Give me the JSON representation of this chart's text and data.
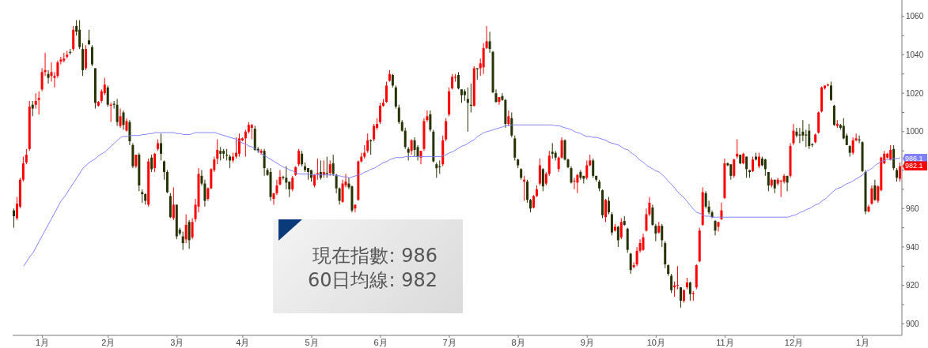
{
  "chart_data": {
    "type": "candlestick",
    "categories": [
      null,
      null,
      null,
      null,
      null,
      null,
      null,
      null,
      null,
      "1月",
      null,
      null,
      null,
      null,
      null,
      null,
      null,
      null,
      null,
      null,
      null,
      null,
      null,
      null,
      null,
      null,
      null,
      null,
      null,
      null,
      "2月",
      null,
      null,
      null,
      null,
      null,
      null,
      null,
      null,
      null,
      null,
      null,
      null,
      null,
      null,
      null,
      null,
      null,
      null,
      null,
      null,
      null,
      "3月",
      null,
      null,
      null,
      null,
      null,
      null,
      null,
      null,
      null,
      null,
      null,
      null,
      null,
      null,
      null,
      null,
      null,
      null,
      null,
      null,
      "4月",
      null,
      null,
      null,
      null,
      null,
      null,
      null,
      null,
      null,
      null,
      null,
      null,
      null,
      null,
      null,
      null,
      null,
      null,
      null,
      null,
      null,
      "5月",
      null,
      null,
      null,
      null,
      null,
      null,
      null,
      null,
      null,
      null,
      null,
      null,
      null,
      null,
      null,
      null,
      null,
      null,
      null,
      null,
      null,
      "6月",
      null,
      null,
      null,
      null,
      null,
      null,
      null,
      null,
      null,
      null,
      null,
      null,
      null,
      null,
      null,
      null,
      null,
      null,
      null,
      null,
      null,
      "7月",
      null,
      null,
      null,
      null,
      null,
      null,
      null,
      null,
      null,
      null,
      null,
      null,
      null,
      null,
      null,
      null,
      null,
      null,
      null,
      null,
      null,
      "8月",
      null,
      null,
      null,
      null,
      null,
      null,
      null,
      null,
      null,
      null,
      null,
      null,
      null,
      null,
      null,
      null,
      null,
      null,
      null,
      null,
      null,
      "9月",
      null,
      null,
      null,
      null,
      null,
      null,
      null,
      null,
      null,
      null,
      null,
      null,
      null,
      null,
      null,
      null,
      null,
      null,
      null,
      null,
      null,
      "10月",
      null,
      null,
      null,
      null,
      null,
      null,
      null,
      null,
      null,
      null,
      null,
      null,
      null,
      null,
      null,
      null,
      null,
      null,
      null,
      null,
      null,
      "11月",
      null,
      null,
      null,
      null,
      null,
      null,
      null,
      null,
      null,
      null,
      null,
      null,
      null,
      null,
      null,
      null,
      null,
      null,
      null,
      null,
      null,
      "12月",
      null,
      null,
      null,
      null,
      null,
      null,
      null,
      null,
      null,
      null,
      null,
      null,
      null,
      null,
      null,
      null,
      null,
      null,
      null,
      null,
      null,
      "1月",
      null,
      null,
      null,
      null,
      null,
      null,
      null,
      null,
      null,
      null,
      null,
      null
    ],
    "ohlc": [
      [
        959,
        960,
        950,
        956
      ],
      [
        955,
        966,
        954,
        962.5
      ],
      [
        961,
        976,
        960,
        975
      ],
      [
        975,
        987,
        974,
        983.5
      ],
      [
        984,
        991,
        983,
        988
      ],
      [
        991,
        1016,
        990,
        1013
      ],
      [
        1014,
        1016,
        1008,
        1012
      ],
      [
        1014,
        1020,
        1012,
        1016
      ],
      [
        1016.5,
        1021,
        1009,
        1017.5
      ],
      [
        1022,
        1033,
        1021,
        1031
      ],
      [
        1031,
        1041,
        1029,
        1032
      ],
      [
        1030,
        1032,
        1025,
        1028
      ],
      [
        1029,
        1036,
        1026,
        1031
      ],
      [
        1028,
        1031,
        1023,
        1029
      ],
      [
        1029,
        1037,
        1028,
        1036
      ],
      [
        1036.5,
        1039,
        1035,
        1037.5
      ],
      [
        1037,
        1041,
        1036,
        1038
      ],
      [
        1039,
        1042,
        1038,
        1040
      ],
      [
        1041.5,
        1043,
        1040,
        1041
      ],
      [
        1043,
        1055,
        1042,
        1053
      ],
      [
        1055,
        1058,
        1050,
        1052
      ],
      [
        1053,
        1058,
        1043,
        1044
      ],
      [
        1043,
        1046,
        1029,
        1032
      ],
      [
        1033,
        1045,
        1032,
        1043
      ],
      [
        1047.5,
        1053,
        1045,
        1045.5
      ],
      [
        1044,
        1045,
        1034,
        1035
      ],
      [
        1033,
        1033,
        1012,
        1015
      ],
      [
        1013.5,
        1016,
        1013,
        1015.5
      ],
      [
        1016,
        1022,
        1015,
        1021
      ],
      [
        1020,
        1028,
        1019,
        1024.5
      ],
      [
        1023,
        1024,
        1013,
        1014
      ],
      [
        1013.5,
        1015,
        1005,
        1014
      ],
      [
        1014.5,
        1016,
        1012,
        1014
      ],
      [
        1014,
        1017,
        1003,
        1005
      ],
      [
        1003,
        1012,
        1002,
        1008
      ],
      [
        1010,
        1011,
        1001,
        1003.5
      ],
      [
        1000.5,
        1007,
        1000,
        1005.5
      ],
      [
        1005,
        1006,
        993,
        995
      ],
      [
        993,
        994,
        981,
        982
      ],
      [
        982,
        988,
        981,
        988
      ],
      [
        988,
        989,
        969,
        972
      ],
      [
        968.5,
        970,
        963,
        967.5
      ],
      [
        967.5,
        968,
        962,
        964
      ],
      [
        962,
        986,
        961,
        984.5
      ],
      [
        986.5,
        988,
        979,
        980.5
      ],
      [
        981,
        989,
        979,
        988.5
      ],
      [
        991,
        996,
        990,
        994
      ],
      [
        994,
        999,
        985,
        988.5
      ],
      [
        984.5,
        985,
        975,
        979
      ],
      [
        979,
        980,
        968,
        968.5
      ],
      [
        966.5,
        968,
        955,
        955.5
      ],
      [
        955,
        971,
        954,
        962
      ],
      [
        962,
        962,
        944,
        945.5
      ],
      [
        949,
        950,
        946,
        947
      ],
      [
        945.5,
        948,
        938.5,
        942
      ],
      [
        944,
        957,
        942,
        951.5
      ],
      [
        953,
        954,
        939,
        943.5
      ],
      [
        945,
        955,
        944,
        953
      ],
      [
        954.5,
        965,
        953,
        962
      ],
      [
        961,
        981,
        958,
        978
      ],
      [
        977,
        980,
        972,
        973
      ],
      [
        973,
        975,
        961,
        964
      ],
      [
        965,
        971,
        964,
        970.5
      ],
      [
        970.5,
        981,
        970,
        980.5
      ],
      [
        980,
        987,
        979,
        985.5
      ],
      [
        986,
        996,
        983,
        990.5
      ],
      [
        990,
        992,
        985,
        988.5
      ],
      [
        990,
        991,
        986,
        988.5
      ],
      [
        988,
        991,
        985,
        987.5
      ],
      [
        987,
        988,
        981,
        985
      ],
      [
        985,
        989,
        984,
        987
      ],
      [
        987,
        997,
        986,
        989
      ],
      [
        988.5,
        999,
        987,
        996.5
      ],
      [
        995.5,
        997,
        995,
        996.5
      ],
      [
        996.5,
        1001,
        987,
        1000
      ],
      [
        1000,
        1005,
        999,
        1003.5
      ],
      [
        1002,
        1004,
        996,
        1003.5
      ],
      [
        1001.5,
        1003,
        990,
        990.5
      ],
      [
        991,
        992,
        989,
        990
      ],
      [
        989,
        991,
        988,
        990
      ],
      [
        990,
        991,
        977,
        981
      ],
      [
        980,
        981,
        977,
        977.5
      ],
      [
        979,
        981,
        964,
        966
      ],
      [
        965,
        968,
        962,
        968
      ],
      [
        968,
        975,
        967,
        972
      ],
      [
        972.5,
        980,
        972,
        976.5
      ],
      [
        976.5,
        977,
        975,
        976
      ],
      [
        976,
        982,
        970,
        973.5
      ],
      [
        974,
        974,
        966,
        970
      ],
      [
        970,
        977,
        969,
        976
      ],
      [
        977.5,
        982,
        977,
        981.5
      ],
      [
        983,
        991,
        982,
        990
      ],
      [
        988.5,
        990,
        982,
        983
      ],
      [
        982,
        984,
        979,
        980
      ],
      [
        981,
        981,
        975,
        979
      ],
      [
        980,
        980,
        974,
        976
      ],
      [
        972,
        978,
        971,
        977.5
      ],
      [
        978,
        986,
        975,
        978.5
      ],
      [
        979,
        985,
        975,
        976
      ],
      [
        977.5,
        985,
        976,
        979
      ],
      [
        978.5,
        987,
        976,
        978
      ],
      [
        978.5,
        985,
        977,
        983
      ],
      [
        983.5,
        988,
        977,
        978
      ],
      [
        977.5,
        978,
        968,
        970.5
      ],
      [
        970.5,
        971,
        962,
        964
      ],
      [
        963.5,
        975,
        963,
        973
      ],
      [
        972,
        978,
        971,
        974
      ],
      [
        973,
        976,
        970,
        971
      ],
      [
        971.5,
        972,
        958,
        959
      ],
      [
        960,
        962,
        958,
        962
      ],
      [
        964.5,
        985,
        964,
        984.5
      ],
      [
        984.5,
        989,
        984,
        987
      ],
      [
        987,
        993,
        986,
        989
      ],
      [
        990,
        999,
        989,
        995.5
      ],
      [
        995.5,
        996,
        988,
        995
      ],
      [
        996,
        1004,
        995,
        1003
      ],
      [
        1002,
        1007,
        1001,
        1004
      ],
      [
        1005,
        1015,
        1004,
        1013.5
      ],
      [
        1013.5,
        1017,
        1013,
        1015
      ],
      [
        1015.5,
        1026,
        1015,
        1024
      ],
      [
        1026.5,
        1032,
        1026,
        1030
      ],
      [
        1029.5,
        1030,
        1023,
        1024
      ],
      [
        1023,
        1024,
        1012,
        1013
      ],
      [
        1012.5,
        1014,
        1004,
        1005
      ],
      [
        1005,
        1006,
        1000,
        1000.5
      ],
      [
        1000.5,
        1002,
        991,
        992
      ],
      [
        991,
        992,
        985,
        989
      ],
      [
        990,
        996,
        988,
        995.5
      ],
      [
        995.5,
        997,
        987,
        990.5
      ],
      [
        992,
        993,
        985,
        987
      ],
      [
        986.5,
        990,
        983,
        990
      ],
      [
        991,
        1007,
        990,
        1005.5
      ],
      [
        1006,
        1011,
        1005,
        1008
      ],
      [
        1009,
        1011,
        1000,
        1001
      ],
      [
        1000,
        1001,
        984,
        984.5
      ],
      [
        983,
        984,
        976,
        981
      ],
      [
        982,
        985,
        978,
        981.5
      ],
      [
        983,
        998,
        982,
        995.5
      ],
      [
        996,
        1007,
        995,
        1005.5
      ],
      [
        1009,
        1023,
        1008,
        1021
      ],
      [
        1022.5,
        1030,
        1022,
        1028.5
      ],
      [
        1028,
        1030,
        1026,
        1028.5
      ],
      [
        1029.5,
        1031,
        1022,
        1022.5
      ],
      [
        1022,
        1022,
        1015,
        1019
      ],
      [
        1021,
        1022,
        1016,
        1019
      ],
      [
        1017,
        1023,
        1000,
        1015
      ],
      [
        1014,
        1025,
        1010,
        1013.5
      ],
      [
        1013.5,
        1034,
        1013,
        1033
      ],
      [
        1033,
        1033,
        1027,
        1032.5
      ],
      [
        1033,
        1038,
        1029,
        1035.5
      ],
      [
        1033.5,
        1046,
        1030,
        1043.5
      ],
      [
        1043.5,
        1055,
        1043,
        1047
      ],
      [
        1047,
        1052,
        1041,
        1043
      ],
      [
        1041.5,
        1042,
        1020,
        1020.5
      ],
      [
        1020,
        1022,
        1015,
        1015.5
      ],
      [
        1015.5,
        1018,
        1014,
        1018
      ],
      [
        1018.5,
        1020,
        1016,
        1016.5
      ],
      [
        1016.5,
        1017,
        1002,
        1004
      ],
      [
        1004,
        1011,
        1003,
        1008
      ],
      [
        1007,
        1010,
        997,
        998
      ],
      [
        996.5,
        998,
        985,
        986.5
      ],
      [
        985.5,
        986,
        981,
        982.5
      ],
      [
        980.5,
        981,
        975,
        976
      ],
      [
        974,
        977,
        964,
        975
      ],
      [
        974,
        975,
        963,
        964.5
      ],
      [
        964.5,
        965,
        958,
        960
      ],
      [
        960.5,
        967,
        960,
        966.5
      ],
      [
        966.5,
        972,
        966,
        970
      ],
      [
        973,
        986,
        972,
        982.5
      ],
      [
        980.5,
        981,
        969,
        971.5
      ],
      [
        973,
        979,
        972,
        978
      ],
      [
        978,
        990,
        977,
        987.5
      ],
      [
        989.5,
        994,
        986,
        988.5
      ],
      [
        989,
        990,
        985,
        986.5
      ],
      [
        980.5,
        987,
        979,
        986.5
      ],
      [
        986.5,
        997,
        986,
        995.5
      ],
      [
        995.5,
        996,
        985,
        985.5
      ],
      [
        985.5,
        986,
        981,
        981.5
      ],
      [
        981,
        982,
        973,
        973.5
      ],
      [
        974,
        976,
        970,
        974.5
      ],
      [
        973.5,
        978,
        968,
        977.5
      ],
      [
        979,
        980,
        975,
        976
      ],
      [
        977,
        977,
        973,
        975.5
      ],
      [
        976,
        985,
        975,
        982.5
      ],
      [
        982.5,
        988,
        982,
        985
      ],
      [
        985,
        986,
        976,
        977
      ],
      [
        977,
        977,
        974,
        975
      ],
      [
        974,
        975,
        969,
        970.5
      ],
      [
        969.5,
        970,
        955,
        956.5
      ],
      [
        955.5,
        965,
        953,
        964.5
      ],
      [
        964,
        966,
        957,
        958
      ],
      [
        957,
        958,
        946,
        947.5
      ],
      [
        948.5,
        952,
        948,
        950.5
      ],
      [
        950.5,
        951,
        940,
        943.5
      ],
      [
        945,
        955,
        944,
        953
      ],
      [
        953.5,
        956,
        951,
        951.5
      ],
      [
        949.5,
        950,
        937,
        938.5
      ],
      [
        936.5,
        937,
        926,
        928
      ],
      [
        929.5,
        932,
        929,
        930.5
      ],
      [
        931,
        940,
        930,
        938
      ],
      [
        938,
        944,
        937,
        942
      ],
      [
        938.5,
        947,
        938,
        945
      ],
      [
        948.5,
        960,
        948,
        957
      ],
      [
        957,
        966,
        956,
        963
      ],
      [
        960.5,
        962,
        951,
        951.5
      ],
      [
        951,
        952,
        943,
        947
      ],
      [
        947.5,
        953,
        947,
        951
      ],
      [
        951,
        952,
        940,
        943.5
      ],
      [
        942,
        943,
        929,
        931
      ],
      [
        930.5,
        931,
        925,
        926
      ],
      [
        925,
        926,
        916,
        917.5
      ],
      [
        919,
        922,
        914,
        920
      ],
      [
        920,
        930,
        918,
        920.3
      ],
      [
        919,
        919,
        908.5,
        912
      ],
      [
        912,
        918,
        911,
        917.5
      ],
      [
        919,
        924,
        918,
        921.5
      ],
      [
        921.5,
        922,
        912,
        915.5
      ],
      [
        915.5,
        917,
        912,
        916
      ],
      [
        919,
        931,
        918,
        930.5
      ],
      [
        932.5,
        950,
        932,
        948.5
      ],
      [
        951.5,
        971,
        951,
        968.5
      ],
      [
        968,
        969,
        960,
        961
      ],
      [
        961,
        964,
        957,
        958
      ],
      [
        958,
        959,
        955,
        955.5
      ],
      [
        953.5,
        954,
        946,
        948.5
      ],
      [
        950.5,
        953,
        948,
        953
      ],
      [
        954.5,
        963,
        954,
        959
      ],
      [
        965.5,
        986,
        965,
        983.5
      ],
      [
        983.5,
        984,
        982,
        982.5
      ],
      [
        983,
        983,
        975,
        977
      ],
      [
        977,
        986,
        976,
        985.5
      ],
      [
        987,
        996,
        986,
        988.5
      ],
      [
        988,
        988,
        983,
        983.5
      ],
      [
        983.5,
        989,
        983,
        988.5
      ],
      [
        987,
        987,
        976,
        980.5
      ],
      [
        980,
        980,
        976,
        979
      ],
      [
        979.5,
        987,
        979,
        985.5
      ],
      [
        987,
        989,
        985,
        985.5
      ],
      [
        982,
        989,
        981,
        987
      ],
      [
        986,
        987,
        982,
        982.5
      ],
      [
        985.5,
        986,
        977,
        980.5
      ],
      [
        979,
        979,
        969,
        972
      ],
      [
        972,
        976,
        971,
        975
      ],
      [
        975,
        975,
        968,
        970.5
      ],
      [
        973,
        976,
        972,
        975
      ],
      [
        974,
        975,
        966,
        974.5
      ],
      [
        974,
        978,
        973,
        977
      ],
      [
        977,
        977,
        969,
        973.5
      ],
      [
        977,
        994,
        976,
        992.5
      ],
      [
        994,
        1004,
        993,
        1000.5
      ],
      [
        1000,
        1002,
        997,
        998
      ],
      [
        998.5,
        1002,
        994,
        998
      ],
      [
        1000,
        1006,
        995,
        998
      ],
      [
        998.5,
        1001,
        992,
        998
      ],
      [
        1000.5,
        1004,
        991,
        992.5
      ],
      [
        993.5,
        994,
        992,
        993
      ],
      [
        994.5,
        999,
        994,
        998.5
      ],
      [
        999.5,
        1010.5,
        999,
        1010
      ],
      [
        1010.5,
        1023.5,
        1010,
        1023
      ],
      [
        1022.5,
        1024,
        1022,
        1024
      ],
      [
        1024,
        1025,
        1023.5,
        1024.5
      ],
      [
        1024,
        1026,
        1016,
        1016.5
      ],
      [
        1013.5,
        1014,
        1003,
        1003.5
      ],
      [
        1003,
        1006,
        1002,
        1004
      ],
      [
        1003.5,
        1004,
        1001,
        1002
      ],
      [
        1003,
        1007,
        996,
        996.5
      ],
      [
        998,
        999,
        993,
        993
      ],
      [
        992.5,
        993,
        987,
        989
      ],
      [
        989,
        997,
        988,
        995.5
      ],
      [
        995.5,
        999,
        995,
        996.5
      ],
      [
        996,
        998,
        994,
        995.5
      ],
      [
        994.5,
        995,
        979,
        979.5
      ],
      [
        979,
        980,
        957,
        958.5
      ],
      [
        958.5,
        962,
        958,
        961
      ],
      [
        962.5,
        972,
        962,
        970.5
      ],
      [
        972,
        975,
        964,
        964.5
      ],
      [
        964,
        972,
        963,
        971.5
      ],
      [
        969.5,
        987,
        969,
        986.5
      ],
      [
        983.5,
        990,
        983,
        988.5
      ],
      [
        986.5,
        989,
        986,
        988.5
      ],
      [
        985.5,
        993,
        985,
        990.5
      ],
      [
        991,
        993,
        980,
        981
      ],
      [
        980,
        981,
        974,
        976
      ],
      [
        975.5,
        984,
        974,
        982
      ]
    ],
    "colors": [
      "#263300",
      "#ff0000",
      "#ff0000",
      "#ff0000",
      "#ff0000",
      "#ff0000",
      "#263300",
      "#ff0000",
      "#ff0000",
      "#ff0000",
      "#ff0000",
      "#263300",
      "#ff0000",
      "#ff0000",
      "#ff0000",
      "#ff0000",
      "#ff0000",
      "#ff0000",
      "#263300",
      "#ff0000",
      "#263300",
      "#263300",
      "#263300",
      "#ff0000",
      "#263300",
      "#263300",
      "#263300",
      "#ff0000",
      "#ff0000",
      "#ff0000",
      "#263300",
      "#ff0000",
      "#263300",
      "#263300",
      "#ff0000",
      "#263300",
      "#ff0000",
      "#263300",
      "#263300",
      "#ff0000",
      "#263300",
      "#263300",
      "#263300",
      "#ff0000",
      "#263300",
      "#ff0000",
      "#ff0000",
      "#263300",
      "#263300",
      "#263300",
      "#263300",
      "#ff0000",
      "#263300",
      "#263300",
      "#263300",
      "#ff0000",
      "#263300",
      "#ff0000",
      "#ff0000",
      "#ff0000",
      "#263300",
      "#263300",
      "#ff0000",
      "#ff0000",
      "#ff0000",
      "#ff0000",
      "#263300",
      "#263300",
      "#263300",
      "#263300",
      "#ff0000",
      "#ff0000",
      "#ff0000",
      "#ff0000",
      "#ff0000",
      "#ff0000",
      "#ff0000",
      "#263300",
      "#263300",
      "#ff0000",
      "#263300",
      "#263300",
      "#263300",
      "#ff0000",
      "#ff0000",
      "#ff0000",
      "#263300",
      "#263300",
      "#263300",
      "#ff0000",
      "#ff0000",
      "#ff0000",
      "#263300",
      "#263300",
      "#263300",
      "#263300",
      "#ff0000",
      "#ff0000",
      "#263300",
      "#ff0000",
      "#263300",
      "#ff0000",
      "#263300",
      "#263300",
      "#263300",
      "#ff0000",
      "#ff0000",
      "#263300",
      "#263300",
      "#ff0000",
      "#ff0000",
      "#ff0000",
      "#ff0000",
      "#ff0000",
      "#263300",
      "#ff0000",
      "#ff0000",
      "#ff0000",
      "#ff0000",
      "#ff0000",
      "#ff0000",
      "#263300",
      "#263300",
      "#263300",
      "#263300",
      "#263300",
      "#263300",
      "#ff0000",
      "#263300",
      "#263300",
      "#ff0000",
      "#ff0000",
      "#ff0000",
      "#263300",
      "#263300",
      "#263300",
      "#263300",
      "#ff0000",
      "#ff0000",
      "#ff0000",
      "#ff0000",
      "#ff0000",
      "#263300",
      "#263300",
      "#263300",
      "#263300",
      "#263300",
      "#ff0000",
      "#263300",
      "#ff0000",
      "#ff0000",
      "#ff0000",
      "#263300",
      "#263300",
      "#263300",
      "#ff0000",
      "#263300",
      "#263300",
      "#ff0000",
      "#263300",
      "#263300",
      "#263300",
      "#263300",
      "#ff0000",
      "#263300",
      "#263300",
      "#ff0000",
      "#ff0000",
      "#ff0000",
      "#263300",
      "#ff0000",
      "#ff0000",
      "#263300",
      "#263300",
      "#ff0000",
      "#ff0000",
      "#263300",
      "#263300",
      "#263300",
      "#ff0000",
      "#ff0000",
      "#263300",
      "#263300",
      "#ff0000",
      "#ff0000",
      "#263300",
      "#263300",
      "#263300",
      "#263300",
      "#ff0000",
      "#263300",
      "#263300",
      "#ff0000",
      "#263300",
      "#ff0000",
      "#263300",
      "#263300",
      "#263300",
      "#ff0000",
      "#ff0000",
      "#ff0000",
      "#ff0000",
      "#ff0000",
      "#ff0000",
      "#263300",
      "#263300",
      "#ff0000",
      "#263300",
      "#263300",
      "#263300",
      "#263300",
      "#ff0000",
      "#ff0000",
      "#263300",
      "#ff0000",
      "#ff0000",
      "#263300",
      "#ff0000",
      "#ff0000",
      "#ff0000",
      "#ff0000",
      "#263300",
      "#263300",
      "#263300",
      "#263300",
      "#ff0000",
      "#ff0000",
      "#ff0000",
      "#263300",
      "#263300",
      "#ff0000",
      "#ff0000",
      "#263300",
      "#ff0000",
      "#263300",
      "#263300",
      "#ff0000",
      "#263300",
      "#ff0000",
      "#263300",
      "#263300",
      "#263300",
      "#ff0000",
      "#263300",
      "#ff0000",
      "#ff0000",
      "#ff0000",
      "#263300",
      "#ff0000",
      "#ff0000",
      "#263300",
      "#263300",
      "#263300",
      "#263300",
      "#263300",
      "#263300",
      "#ff0000",
      "#ff0000",
      "#ff0000",
      "#ff0000",
      "#ff0000",
      "#263300",
      "#263300",
      "#ff0000",
      "#263300",
      "#263300",
      "#263300",
      "#263300",
      "#ff0000",
      "#ff0000",
      "#263300",
      "#263300",
      "#263300",
      "#ff0000",
      "#ff0000",
      "#263300",
      "#ff0000",
      "#ff0000",
      "#ff0000",
      "#ff0000",
      "#ff0000",
      "#263300",
      "#263300",
      "#ff0000"
    ],
    "series": [
      {
        "type": "line",
        "color": "#8080ff",
        "values": [
          null,
          null,
          null,
          930,
          932.5,
          935,
          937,
          940,
          943,
          946,
          949,
          952,
          955,
          958,
          961,
          964,
          966,
          968.5,
          971,
          973.5,
          976,
          978.5,
          981,
          982.5,
          984,
          985,
          986,
          987.5,
          988.5,
          989.5,
          991,
          992.5,
          994,
          995.5,
          997,
          997.5,
          997.5,
          998,
          998,
          998,
          998,
          998.5,
          998.5,
          999,
          999,
          999.5,
          999.5,
          999.5,
          999.5,
          999.5,
          999.5,
          999.5,
          999,
          999,
          998.5,
          998.5,
          998.5,
          999,
          999.5,
          999.5,
          999.5,
          999.5,
          999.5,
          999.5,
          999.5,
          999,
          998.5,
          998,
          997.5,
          997,
          996.5,
          996,
          995,
          994,
          993.5,
          992.5,
          992,
          991,
          990,
          988.5,
          987.5,
          986.5,
          985.5,
          984.5,
          983.5,
          982.5,
          981.5,
          981,
          980,
          979.5,
          978.5,
          978,
          978,
          978,
          978,
          977.5,
          977.5,
          977.5,
          977.5,
          977.5,
          977.5,
          977.5,
          977.5,
          977,
          977,
          976.5,
          976.5,
          976,
          976.5,
          977,
          977.5,
          978,
          979,
          979.5,
          980.5,
          981,
          982,
          983,
          984,
          984.5,
          985.5,
          986,
          986.5,
          986.5,
          986.5,
          987,
          987,
          987,
          987,
          987,
          987,
          987,
          987,
          987,
          987,
          987,
          987,
          987.5,
          988,
          989,
          989.5,
          990.5,
          991.5,
          992.5,
          993,
          994,
          995,
          996,
          997.5,
          998.5,
          999.5,
          1000,
          1000.5,
          1001,
          1001.5,
          1002,
          1002.5,
          1003,
          1003,
          1003.5,
          1003.5,
          1003.5,
          1003.5,
          1003.5,
          1003.5,
          1003.5,
          1003.5,
          1003.5,
          1003.5,
          1003.5,
          1003.5,
          1003.5,
          1003.5,
          1003,
          1003,
          1002.5,
          1002,
          1001.5,
          1001,
          1000,
          999.5,
          999,
          998,
          997.5,
          997.5,
          997,
          997,
          996.5,
          996,
          995.5,
          994.5,
          994,
          993.5,
          993,
          992,
          991,
          990.5,
          989,
          988,
          986.5,
          985,
          984,
          982.5,
          981.5,
          980.5,
          979.5,
          979,
          977.5,
          976,
          974,
          972.5,
          970.5,
          968.5,
          967,
          965.5,
          963.5,
          961.5,
          959.5,
          958,
          957.5,
          956.5,
          956,
          956,
          955.5,
          955.5,
          955.5,
          955.5,
          955.5,
          955.5,
          955.5,
          955.5,
          955.5,
          955.5,
          955.5,
          955.5,
          955.5,
          955.5,
          955.5,
          955.5,
          955.5,
          955.5,
          955.5,
          955.5,
          955.5,
          955.5,
          955.5,
          955.5,
          955.5,
          956,
          956.5,
          957,
          958,
          958.5,
          959.5,
          960,
          961,
          962,
          962.5,
          964,
          965,
          966.5,
          968,
          969.5,
          970.5,
          971,
          972,
          973,
          973.5,
          974.5,
          975.5,
          976.5,
          977.5,
          979,
          980,
          981,
          982.5,
          983.5,
          984.5,
          985,
          985.5,
          985.5,
          986,
          986,
          986.5
        ]
      }
    ],
    "ylim": [
      894,
      1068.5
    ],
    "yticks": [
      900,
      {
        "value": 910,
        "label": null
      },
      920,
      {
        "value": 930,
        "label": null
      },
      940,
      {
        "value": 950,
        "label": null
      },
      960,
      {
        "value": 970,
        "label": null
      },
      {
        "value": 980,
        "label": null
      },
      {
        "value": 990,
        "label": null
      },
      1000,
      {
        "value": 1010,
        "label": null
      },
      1020,
      {
        "value": 1030,
        "label": null
      },
      1040,
      {
        "value": 1050,
        "label": null
      },
      1060
    ],
    "annotations": [
      "現在指數: 986",
      "60日均線: 982",
      {
        "text": "986.1",
        "y": 986.1
      },
      {
        "text": "982.1",
        "y": 982.1
      }
    ]
  }
}
